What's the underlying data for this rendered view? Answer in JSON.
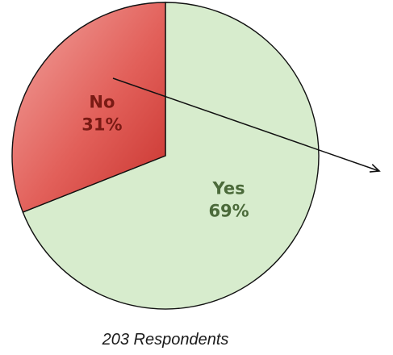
{
  "chart_data": {
    "type": "pie",
    "slices": [
      {
        "label": "Yes",
        "value": 69,
        "value_label": "69%",
        "color": "#d7eccd",
        "label_color": "#4b6a3a"
      },
      {
        "label": "No",
        "value": 31,
        "value_label": "31%",
        "color": "#e2605a",
        "label_color": "#7a1a14"
      }
    ],
    "caption": "203 Respondents",
    "legend": "none",
    "annotations": [
      "arrow"
    ]
  }
}
